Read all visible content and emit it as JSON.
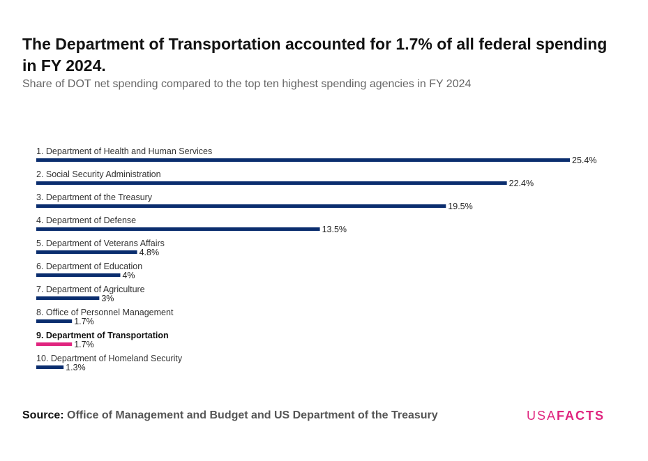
{
  "title": "The Department of Transportation accounted for 1.7% of all federal spending in FY 2024.",
  "subtitle": "Share of DOT net spending compared to the top ten highest spending agencies in FY 2024",
  "source": {
    "label": "Source:",
    "text": "Office of Management and Budget and US Department of the Treasury"
  },
  "logo": {
    "usa": "USA",
    "facts": "FACTS"
  },
  "colors": {
    "bar": "#0a2d6e",
    "highlight": "#e0257f"
  },
  "chart_data": {
    "type": "bar",
    "orientation": "horizontal",
    "categories": [
      "1. Department of Health and Human Services",
      "2. Social Security Administration",
      "3. Department of the Treasury",
      "4. Department of Defense",
      "5. Department of Veterans Affairs",
      "6. Department of Education",
      "7. Department of Agriculture",
      "8. Office of Personnel Management",
      "9. Department of Transportation",
      "10. Department of Homeland Security"
    ],
    "values": [
      25.4,
      22.4,
      19.5,
      13.5,
      4.8,
      4,
      3,
      1.7,
      1.7,
      1.3
    ],
    "value_labels": [
      "25.4%",
      "22.4%",
      "19.5%",
      "13.5%",
      "4.8%",
      "4%",
      "3%",
      "1.7%",
      "1.7%",
      "1.3%"
    ],
    "highlight_index": 8,
    "xlim": [
      0,
      25.4
    ],
    "grid": false,
    "legend": "none"
  }
}
